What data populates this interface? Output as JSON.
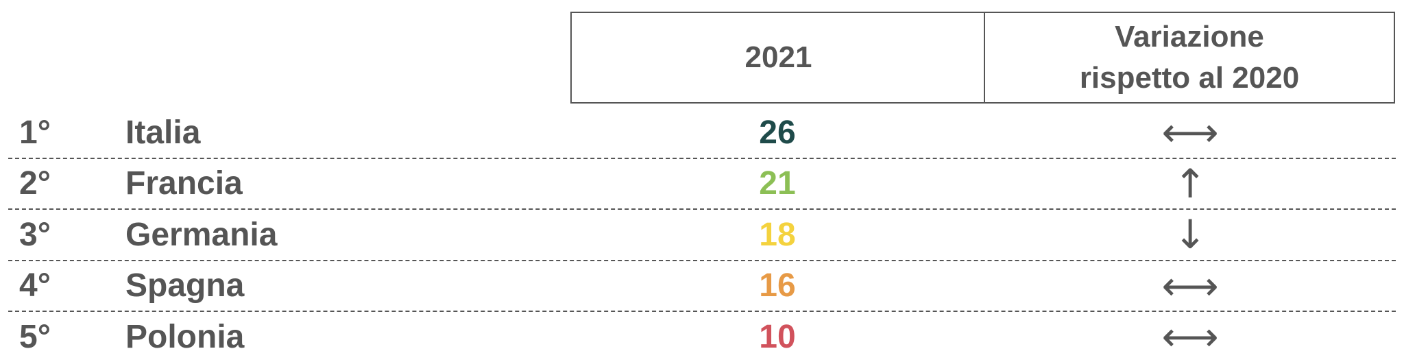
{
  "header": {
    "columns": [
      "2021",
      "Variazione rispetto al 2020"
    ]
  },
  "table": {
    "rows": [
      {
        "rank": "1°",
        "country": "Italia",
        "value": 26,
        "color": "#1f4b4a",
        "change": "⟷"
      },
      {
        "rank": "2°",
        "country": "Francia",
        "value": 21,
        "color": "#8cbf55",
        "change": "↑"
      },
      {
        "rank": "3°",
        "country": "Germania",
        "value": 18,
        "color": "#f4d23e",
        "change": "↓"
      },
      {
        "rank": "4°",
        "country": "Spagna",
        "value": 16,
        "color": "#e79a46",
        "change": "⟷"
      },
      {
        "rank": "5°",
        "country": "Polonia",
        "value": 10,
        "color": "#d1525c",
        "change": "⟷"
      }
    ]
  }
}
